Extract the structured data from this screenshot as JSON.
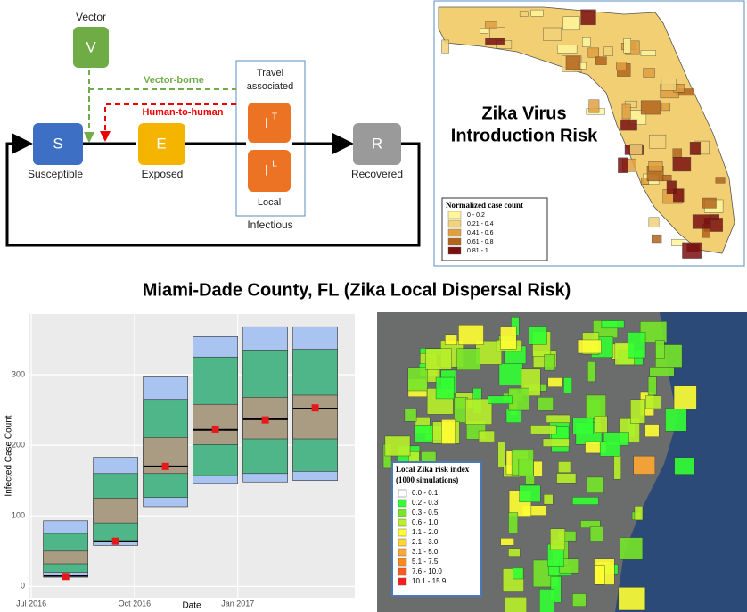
{
  "diagram": {
    "vector": {
      "label": "V",
      "caption": "Vector"
    },
    "susceptible": {
      "label": "S",
      "caption": "Susceptible"
    },
    "exposed": {
      "label": "E",
      "caption": "Exposed"
    },
    "travel": {
      "label": "I",
      "sup": "T",
      "caption": [
        "Travel",
        "associated"
      ]
    },
    "local": {
      "label": "I",
      "sup": "L",
      "caption": "Local"
    },
    "recovered": {
      "label": "R",
      "caption": "Recovered"
    },
    "infectious": "Infectious",
    "vector_borne": "Vector-borne",
    "human_to_human": "Human-to-human"
  },
  "florida_map": {
    "title": [
      "Zika Virus",
      "Introduction Risk"
    ],
    "legend": {
      "title": "Normalized case count",
      "items": [
        {
          "label": "0 - 0.2",
          "color": "#fff59a"
        },
        {
          "label": "0.21 - 0.4",
          "color": "#f3d27a"
        },
        {
          "label": "0.41 - 0.6",
          "color": "#e0a040"
        },
        {
          "label": "0.61 - 0.8",
          "color": "#b3651c"
        },
        {
          "label": "0.81 - 1",
          "color": "#7a1010"
        }
      ]
    }
  },
  "heading": "Miami-Dade County, FL (Zika Local Dispersal Risk)",
  "miami_map": {
    "legend": {
      "title": [
        "Local Zika risk index",
        "(1000 simulations)"
      ],
      "items": [
        {
          "label": "0.0 - 0.1",
          "color": "#ffffff"
        },
        {
          "label": "0.2 - 0.3",
          "color": "#33ff33"
        },
        {
          "label": "0.3 - 0.5",
          "color": "#77e62a"
        },
        {
          "label": "0.6 - 1.0",
          "color": "#b8f02a"
        },
        {
          "label": "1.1 - 2.0",
          "color": "#ffff33"
        },
        {
          "label": "2.1 - 3.0",
          "color": "#ffd633"
        },
        {
          "label": "3.1 - 5.0",
          "color": "#ffa833"
        },
        {
          "label": "5.1 - 7.5",
          "color": "#ff8a1a"
        },
        {
          "label": "7.6 - 10.0",
          "color": "#ff5a1a"
        },
        {
          "label": "10.1 - 15.9",
          "color": "#ff1a1a"
        }
      ]
    }
  },
  "chart_data": {
    "type": "box",
    "xlabel": "Date",
    "ylabel": "Infected Case Count",
    "x": [
      1,
      2.45,
      3.9,
      5.35,
      6.8,
      8.25
    ],
    "xlim": [
      -0.08,
      9.4
    ],
    "xticks": [
      {
        "value": 0,
        "label": "Jul 2016"
      },
      {
        "value": 3,
        "label": "Oct 2016"
      },
      {
        "value": 6,
        "label": "Jan 2017"
      }
    ],
    "ylim": [
      -16,
      386
    ],
    "yticks": [
      0,
      100,
      200,
      300
    ],
    "grid": true,
    "colors": {
      "outer": "#a9c4f0",
      "middle": "#4fb68a",
      "inner": "#a99c82",
      "median": "#000000",
      "mean": "#e31a1c"
    },
    "outer": [
      [
        13,
        93
      ],
      [
        58,
        183
      ],
      [
        113,
        297
      ],
      [
        146,
        354
      ],
      [
        148,
        368
      ],
      [
        150,
        368
      ]
    ],
    "middle": [
      [
        20,
        75
      ],
      [
        63,
        160
      ],
      [
        126,
        265
      ],
      [
        157,
        325
      ],
      [
        160,
        335
      ],
      [
        163,
        336
      ]
    ],
    "inner": [
      [
        32,
        50
      ],
      [
        90,
        125
      ],
      [
        160,
        211
      ],
      [
        201,
        258
      ],
      [
        209,
        268
      ],
      [
        209,
        271
      ]
    ],
    "median": [
      15,
      64,
      170,
      222,
      237,
      252
    ],
    "mean": [
      14,
      64,
      170,
      223,
      236,
      253
    ]
  }
}
